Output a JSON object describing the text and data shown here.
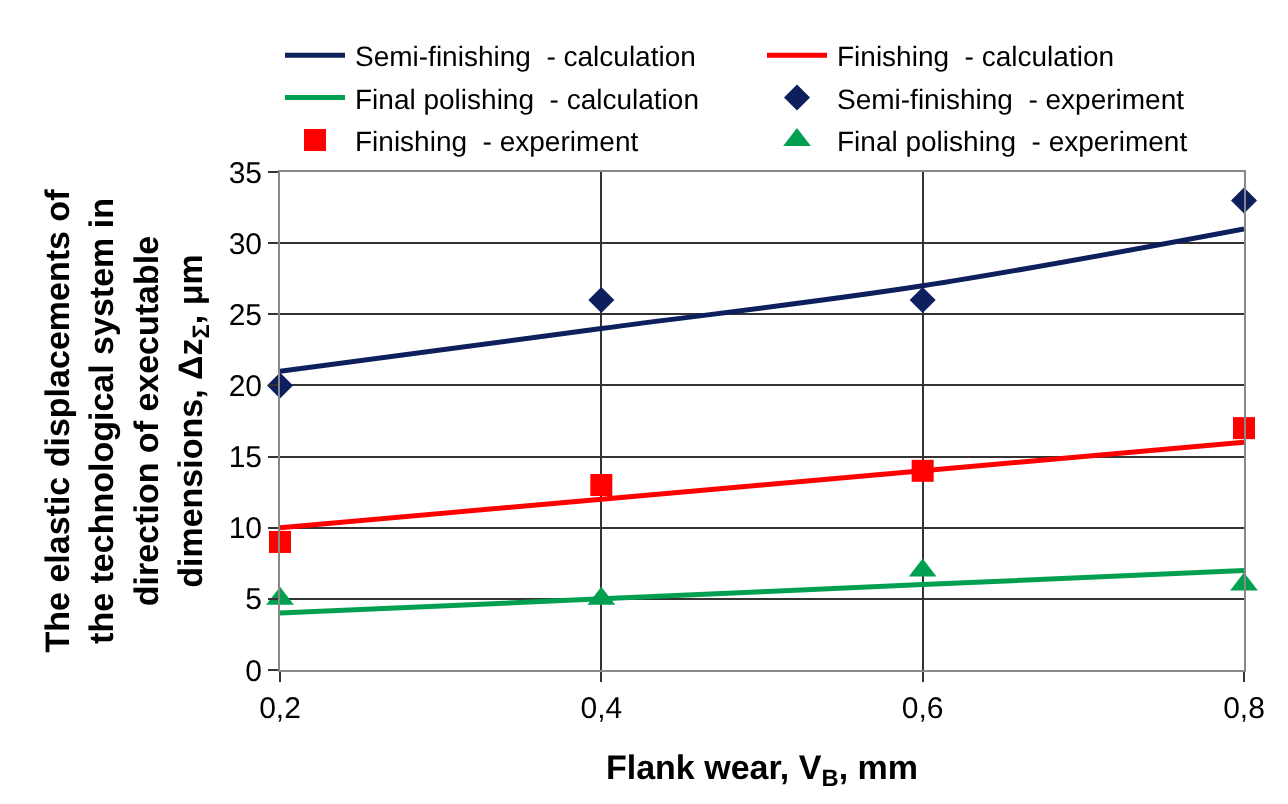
{
  "chart_data": {
    "type": "line",
    "xlabel": "Flank wear, V$_{B}$, mm",
    "ylabel": "The elastic displacements of the technological system in direction of executable dimensions, Δz$_{Σ}$, μm",
    "x": [
      0.2,
      0.4,
      0.6,
      0.8
    ],
    "series": [
      {
        "name": "Semi-finishing  - calculation",
        "marker": "none",
        "color": "#0d1f5c",
        "values": [
          21,
          24,
          27,
          31
        ]
      },
      {
        "name": "Finishing  - calculation",
        "marker": "none",
        "color": "#ff0000",
        "values": [
          10,
          12,
          14,
          16
        ]
      },
      {
        "name": "Final polishing  - calculation",
        "marker": "none",
        "color": "#00a050",
        "values": [
          4,
          5,
          6,
          7
        ]
      },
      {
        "name": "Semi-finishing  - experiment",
        "type": "scatter",
        "marker": "diamond",
        "color": "#0d1f5c",
        "values": [
          20,
          26,
          26,
          33
        ]
      },
      {
        "name": "Finishing  - experiment",
        "type": "scatter",
        "marker": "square",
        "color": "#ff0000",
        "values": [
          9,
          13,
          14,
          17
        ]
      },
      {
        "name": "Final polishing  - experiment",
        "type": "scatter",
        "marker": "triangle",
        "color": "#00a050",
        "values": [
          5,
          5,
          7,
          6
        ]
      }
    ],
    "xlim": [
      0.2,
      0.8
    ],
    "xticks": [
      {
        "value": 0.2,
        "label": "0,2"
      },
      {
        "value": 0.4,
        "label": "0,4"
      },
      {
        "value": 0.6,
        "label": "0,6"
      },
      {
        "value": 0.8,
        "label": "0,8"
      }
    ],
    "ylim": [
      0,
      35
    ],
    "yticks": [
      0,
      5,
      10,
      15,
      20,
      25,
      30,
      35
    ],
    "grid": true,
    "legend": "top"
  }
}
